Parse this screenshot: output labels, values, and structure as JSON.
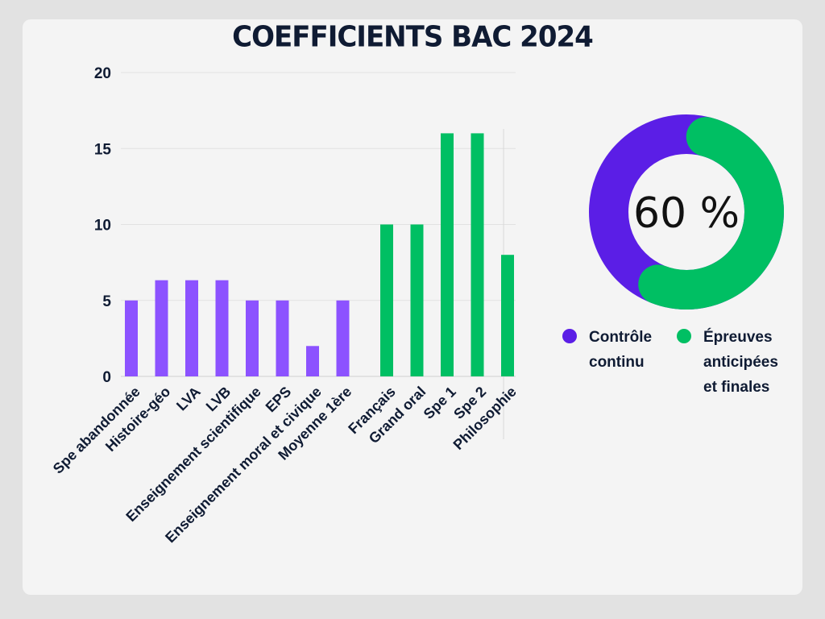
{
  "chart_data": [
    {
      "type": "bar",
      "title": "COEFFICIENTS BAC 2024",
      "categories": [
        "Spe abandonnée",
        "Histoire-géo",
        "LVA",
        "LVB",
        "Enseignement scientifique",
        "EPS",
        "Enseignement moral et civique",
        "Moyenne 1ère",
        "Français",
        "Grand oral",
        "Spe 1",
        "Spe 2",
        "Philosophie"
      ],
      "values": [
        5,
        6.33,
        6.33,
        6.33,
        5,
        5,
        2,
        5,
        10,
        10,
        16,
        16,
        8
      ],
      "groups": [
        "Contrôle continu",
        "Contrôle continu",
        "Contrôle continu",
        "Contrôle continu",
        "Contrôle continu",
        "Contrôle continu",
        "Contrôle continu",
        "Contrôle continu",
        "Épreuves anticipées et finales",
        "Épreuves anticipées et finales",
        "Épreuves anticipées et finales",
        "Épreuves anticipées et finales",
        "Épreuves anticipées et finales"
      ],
      "yticks": [
        "0",
        "5",
        "10",
        "15",
        "20"
      ],
      "ylim": [
        0,
        20
      ],
      "grid": true,
      "xlabel": "",
      "ylabel": ""
    },
    {
      "type": "pie",
      "style": "donut",
      "center_label": "60 %",
      "slices": [
        {
          "name": "Contrôle continu",
          "value": 40,
          "color": "#5b1ee6"
        },
        {
          "name": "Épreuves anticipées et finales",
          "value": 60,
          "color": "#00bf63"
        }
      ],
      "legend": "bottom"
    }
  ],
  "colors": {
    "cc_bar": "#8c52ff",
    "finals": "#00bf63",
    "cc_donut": "#5b1ee6",
    "text": "#0f1b33"
  }
}
